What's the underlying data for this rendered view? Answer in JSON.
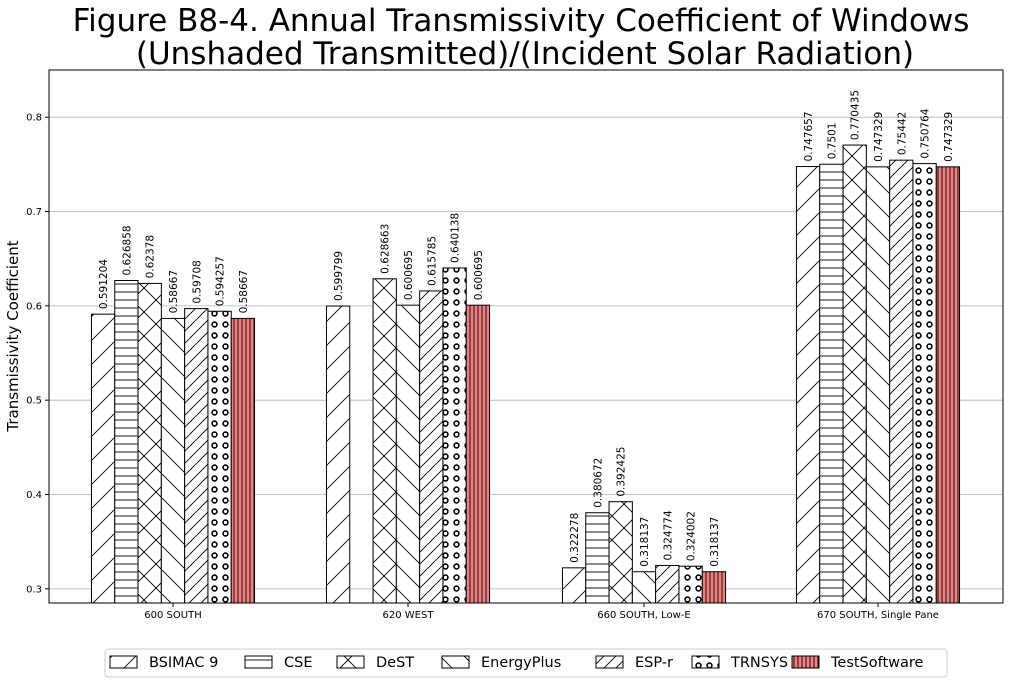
{
  "chart_data": {
    "type": "bar",
    "title_lines": [
      "Figure B8-4.  Annual Transmissivity Coefficient of Windows",
      "(Unshaded Transmitted)/(Incident Solar Radiation)"
    ],
    "xlabel": "",
    "ylabel": "Transmissivity Coefficient",
    "ylim": [
      0.285,
      0.85
    ],
    "yticks": [
      0.3,
      0.4,
      0.5,
      0.6,
      0.7,
      0.8
    ],
    "ytick_labels": [
      "0.3",
      "0.4",
      "0.5",
      "0.6",
      "0.7",
      "0.8"
    ],
    "grid": "horizontal",
    "legend_position": "bottom",
    "categories": [
      "600 SOUTH",
      "620 WEST",
      "660 SOUTH, Low-E",
      "670 SOUTH, Single Pane"
    ],
    "series": [
      {
        "name": "BSIMAC 9",
        "pattern": "forward-diagonal",
        "color": "#ffffff",
        "values": [
          0.591204,
          0.599799,
          0.322278,
          0.747657
        ],
        "labels": [
          "0.591204",
          "0.599799",
          "0.322278",
          "0.747657"
        ]
      },
      {
        "name": "CSE",
        "pattern": "horizontal",
        "color": "#ffffff",
        "values": [
          0.626858,
          null,
          0.380672,
          0.7501
        ],
        "labels": [
          "0.626858",
          "",
          "0.380672",
          "0.7501"
        ]
      },
      {
        "name": "DeST",
        "pattern": "cross-diagonal",
        "color": "#ffffff",
        "values": [
          0.62378,
          0.628663,
          0.392425,
          0.770435
        ],
        "labels": [
          "0.62378",
          "0.628663",
          "0.392425",
          "0.770435"
        ]
      },
      {
        "name": "EnergyPlus",
        "pattern": "back-diagonal",
        "color": "#ffffff",
        "values": [
          0.58667,
          0.600695,
          0.318137,
          0.747329
        ],
        "labels": [
          "0.58667",
          "0.600695",
          "0.318137",
          "0.747329"
        ]
      },
      {
        "name": "ESP-r",
        "pattern": "dense-forward-diagonal",
        "color": "#ffffff",
        "values": [
          0.59708,
          0.615785,
          0.324774,
          0.75442
        ],
        "labels": [
          "0.59708",
          "0.615785",
          "0.324774",
          "0.75442"
        ]
      },
      {
        "name": "TRNSYS",
        "pattern": "circles",
        "color": "#ffffff",
        "values": [
          0.594257,
          0.640138,
          0.324002,
          0.750764
        ],
        "labels": [
          "0.594257",
          "0.640138",
          "0.324002",
          "0.750764"
        ]
      },
      {
        "name": "TestSoftware",
        "pattern": "vertical",
        "color": "#f08080",
        "values": [
          0.58667,
          0.600695,
          0.318137,
          0.747329
        ],
        "labels": [
          "0.58667",
          "0.600695",
          "0.318137",
          "0.747329"
        ]
      }
    ]
  }
}
